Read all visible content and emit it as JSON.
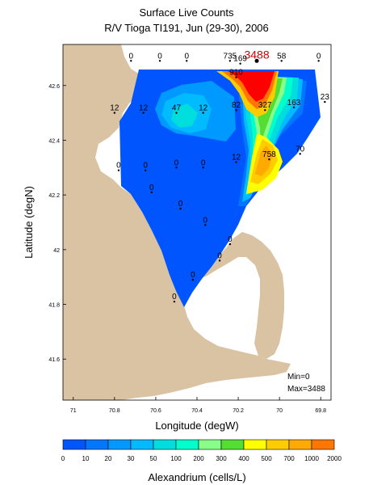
{
  "chart_data": {
    "type": "heatmap",
    "title": "Surface Live Counts",
    "subtitle": "R/V Tioga TI191, Jun (29-30), 2006",
    "xlabel": "Longitude (degW)",
    "ylabel": "Latitude (degN)",
    "xlim": [
      71.05,
      69.75
    ],
    "ylim": [
      41.45,
      42.75
    ],
    "x_ticks": [
      "71",
      "70.8",
      "70.6",
      "70.4",
      "70.2",
      "70",
      "69.8"
    ],
    "x_tick_values": [
      71.0,
      70.8,
      70.6,
      70.4,
      70.2,
      70.0,
      69.8
    ],
    "y_ticks": [
      "42.6",
      "42.4",
      "42.2",
      "42",
      "41.8",
      "41.6"
    ],
    "y_tick_values": [
      42.6,
      42.4,
      42.2,
      42.0,
      41.8,
      41.6
    ],
    "stations": [
      {
        "lon": 70.72,
        "lat": 42.69,
        "value": "0"
      },
      {
        "lon": 70.58,
        "lat": 42.69,
        "value": "0"
      },
      {
        "lon": 70.45,
        "lat": 42.69,
        "value": "0"
      },
      {
        "lon": 70.24,
        "lat": 42.69,
        "value": "735"
      },
      {
        "lon": 70.19,
        "lat": 42.68,
        "value": "169"
      },
      {
        "lon": 70.11,
        "lat": 42.69,
        "value": "3488",
        "max": true
      },
      {
        "lon": 69.99,
        "lat": 42.69,
        "value": "58"
      },
      {
        "lon": 69.81,
        "lat": 42.69,
        "value": "0"
      },
      {
        "lon": 70.21,
        "lat": 42.63,
        "value": "910"
      },
      {
        "lon": 70.8,
        "lat": 42.5,
        "value": "12"
      },
      {
        "lon": 70.66,
        "lat": 42.5,
        "value": "12"
      },
      {
        "lon": 70.5,
        "lat": 42.5,
        "value": "47"
      },
      {
        "lon": 70.37,
        "lat": 42.5,
        "value": "12"
      },
      {
        "lon": 70.21,
        "lat": 42.51,
        "value": "82"
      },
      {
        "lon": 70.07,
        "lat": 42.51,
        "value": "327"
      },
      {
        "lon": 69.93,
        "lat": 42.52,
        "value": "163"
      },
      {
        "lon": 69.78,
        "lat": 42.54,
        "value": "23"
      },
      {
        "lon": 70.78,
        "lat": 42.29,
        "value": "0"
      },
      {
        "lon": 70.65,
        "lat": 42.29,
        "value": "0"
      },
      {
        "lon": 70.5,
        "lat": 42.3,
        "value": "0"
      },
      {
        "lon": 70.37,
        "lat": 42.3,
        "value": "0"
      },
      {
        "lon": 70.21,
        "lat": 42.32,
        "value": "12"
      },
      {
        "lon": 70.05,
        "lat": 42.33,
        "value": "758"
      },
      {
        "lon": 69.9,
        "lat": 42.35,
        "value": "70"
      },
      {
        "lon": 70.62,
        "lat": 42.21,
        "value": "0"
      },
      {
        "lon": 70.48,
        "lat": 42.15,
        "value": "0"
      },
      {
        "lon": 70.36,
        "lat": 42.09,
        "value": "0"
      },
      {
        "lon": 70.24,
        "lat": 42.02,
        "value": "0"
      },
      {
        "lon": 70.29,
        "lat": 41.96,
        "value": "0"
      },
      {
        "lon": 70.42,
        "lat": 41.89,
        "value": "0"
      },
      {
        "lon": 70.51,
        "lat": 41.81,
        "value": "0"
      }
    ],
    "minmax": [
      "Min=0",
      "Max=3488"
    ],
    "colorbar": {
      "label": "Alexandrium (cells/L)",
      "ticks": [
        "0",
        "10",
        "20",
        "30",
        "50",
        "100",
        "200",
        "300",
        "400",
        "500",
        "700",
        "1000",
        "2000"
      ],
      "colors": [
        "#0055ff",
        "#0077ff",
        "#0099ff",
        "#00bbff",
        "#00dddd",
        "#00ffcc",
        "#88ff88",
        "#55dd33",
        "#ffff00",
        "#ffcc00",
        "#ffaa00",
        "#ff7700",
        "#ff0000"
      ]
    },
    "land_color": "#d9c3a3",
    "survey_background": "#0055ff"
  }
}
